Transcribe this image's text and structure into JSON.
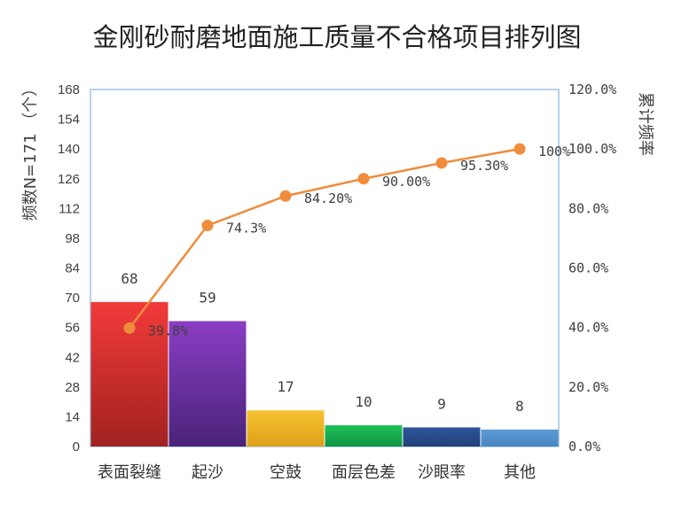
{
  "chart_data": {
    "type": "bar",
    "title": "金刚砂耐磨地面施工质量不合格项目排列图",
    "ylabel": "频数N=171 （个）",
    "y2label": "累计频率",
    "categories": [
      "表面裂缝",
      "起沙",
      "空鼓",
      "面层色差",
      "沙眼率",
      "其他"
    ],
    "series": [
      {
        "type": "bar",
        "values": [
          68,
          59,
          17,
          10,
          9,
          8
        ]
      },
      {
        "type": "line",
        "values": [
          39.8,
          74.3,
          84.2,
          90.0,
          95.3,
          100
        ]
      }
    ],
    "bar_colors": [
      [
        "#f23a3a",
        "#a1221f"
      ],
      [
        "#8a3ec4",
        "#4a2379"
      ],
      [
        "#f6c232",
        "#dfa019"
      ],
      [
        "#1ec259",
        "#0f9440"
      ],
      [
        "#2d559b",
        "#223f78"
      ],
      [
        "#5b9bd5",
        "#4a86c2"
      ]
    ],
    "line_color": "#f08c3c",
    "value_labels": [
      "68",
      "59",
      "17",
      "10",
      "9",
      "8"
    ],
    "percent_labels": [
      "39.8%",
      "74.3%",
      "84.20%",
      "90.00%",
      "95.30%",
      "100%"
    ],
    "ylim": [
      0,
      168
    ],
    "y_ticks": [
      "0",
      "14",
      "28",
      "42",
      "56",
      "70",
      "84",
      "98",
      "112",
      "126",
      "140",
      "154",
      "168"
    ],
    "y2lim": [
      0,
      120
    ],
    "y2_ticks": [
      "0.0%",
      "20.0%",
      "40.0%",
      "60.0%",
      "80.0%",
      "100.0%",
      "120.0%"
    ],
    "frame_color": "#9dc3e6",
    "grid": false,
    "legend": "none"
  }
}
